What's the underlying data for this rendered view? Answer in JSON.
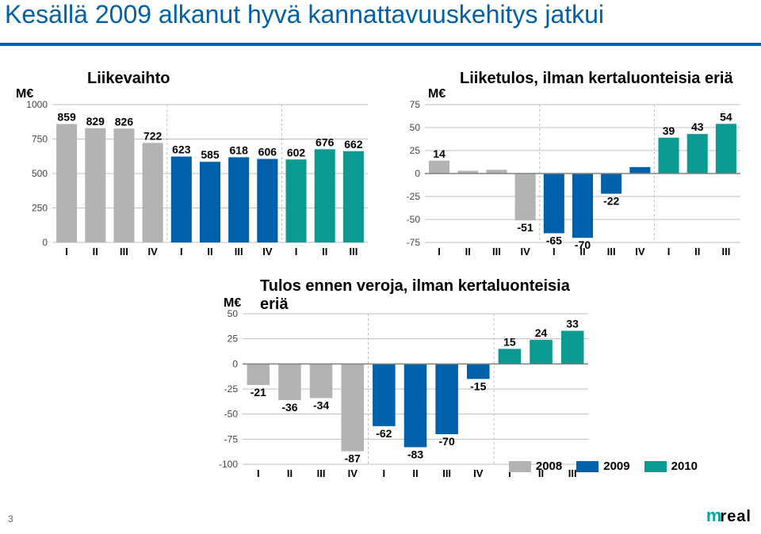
{
  "title": "Kesällä 2009 alkanut hyvä kannattavuuskehitys jatkui",
  "accent": "#0061aa",
  "page_number": "3",
  "logo_text": "real",
  "colors": {
    "year2008": "#b3b3b3",
    "year2009": "#0061aa",
    "year2010": "#0a9a92",
    "grid": "#bfbfbf",
    "axis": "#808080"
  },
  "legend": [
    {
      "label": "2008",
      "color": "#b3b3b3"
    },
    {
      "label": "2009",
      "color": "#0061aa"
    },
    {
      "label": "2010",
      "color": "#0a9a92"
    }
  ],
  "chart1": {
    "title": "Liikevaihto",
    "axis_title": "M€",
    "ylim": [
      0,
      1000
    ],
    "ytick_step": 250,
    "groups": [
      {
        "label": "I",
        "color": "#b3b3b3",
        "v": 859
      },
      {
        "label": "II",
        "color": "#b3b3b3",
        "v": 829
      },
      {
        "label": "III",
        "color": "#b3b3b3",
        "v": 826
      },
      {
        "label": "IV",
        "color": "#b3b3b3",
        "v": 722
      },
      {
        "label": "I",
        "color": "#0061aa",
        "v": 623
      },
      {
        "label": "II",
        "color": "#0061aa",
        "v": 585
      },
      {
        "label": "III",
        "color": "#0061aa",
        "v": 618
      },
      {
        "label": "IV",
        "color": "#0061aa",
        "v": 606
      },
      {
        "label": "I",
        "color": "#0a9a92",
        "v": 602
      },
      {
        "label": "II",
        "color": "#0a9a92",
        "v": 676
      },
      {
        "label": "III",
        "color": "#0a9a92",
        "v": 662
      }
    ],
    "bar_width": 0.72,
    "value_fontsize": 14,
    "year_breaks": [
      4,
      8
    ]
  },
  "chart2": {
    "title": "Liiketulos, ilman kertaluonteisia eriä",
    "axis_title": "M€",
    "ylim": [
      -75,
      75
    ],
    "ytick_step": 25,
    "groups": [
      {
        "label": "I",
        "color": "#b3b3b3",
        "v": 14
      },
      {
        "label": "II",
        "color": "#b3b3b3",
        "v": 3,
        "hide_value": true
      },
      {
        "label": "III",
        "color": "#b3b3b3",
        "v": 4,
        "hide_value": true
      },
      {
        "label": "IV",
        "color": "#b3b3b3",
        "v": -51
      },
      {
        "label": "I",
        "color": "#0061aa",
        "v": -65
      },
      {
        "label": "II",
        "color": "#0061aa",
        "v": -70
      },
      {
        "label": "III",
        "color": "#0061aa",
        "v": -22
      },
      {
        "label": "IV",
        "color": "#0061aa",
        "v": 7,
        "hide_value": true
      },
      {
        "label": "I",
        "color": "#0a9a92",
        "v": 39
      },
      {
        "label": "II",
        "color": "#0a9a92",
        "v": 43
      },
      {
        "label": "III",
        "color": "#0a9a92",
        "v": 54
      }
    ],
    "bar_width": 0.72,
    "year_breaks": [
      4,
      8
    ]
  },
  "chart3": {
    "title": "Tulos ennen veroja, ilman kertaluonteisia eriä",
    "axis_title": "M€",
    "ylim": [
      -100,
      50
    ],
    "ytick_step": 25,
    "groups": [
      {
        "label": "I",
        "color": "#b3b3b3",
        "v": -21
      },
      {
        "label": "II",
        "color": "#b3b3b3",
        "v": -36
      },
      {
        "label": "III",
        "color": "#b3b3b3",
        "v": -34
      },
      {
        "label": "IV",
        "color": "#b3b3b3",
        "v": -87
      },
      {
        "label": "I",
        "color": "#0061aa",
        "v": -62
      },
      {
        "label": "II",
        "color": "#0061aa",
        "v": -83
      },
      {
        "label": "III",
        "color": "#0061aa",
        "v": -70
      },
      {
        "label": "IV",
        "color": "#0061aa",
        "v": -15
      },
      {
        "label": "I",
        "color": "#0a9a92",
        "v": 15
      },
      {
        "label": "II",
        "color": "#0a9a92",
        "v": 24
      },
      {
        "label": "III",
        "color": "#0a9a92",
        "v": 33
      }
    ],
    "bar_width": 0.72,
    "year_breaks": [
      4,
      8
    ]
  }
}
